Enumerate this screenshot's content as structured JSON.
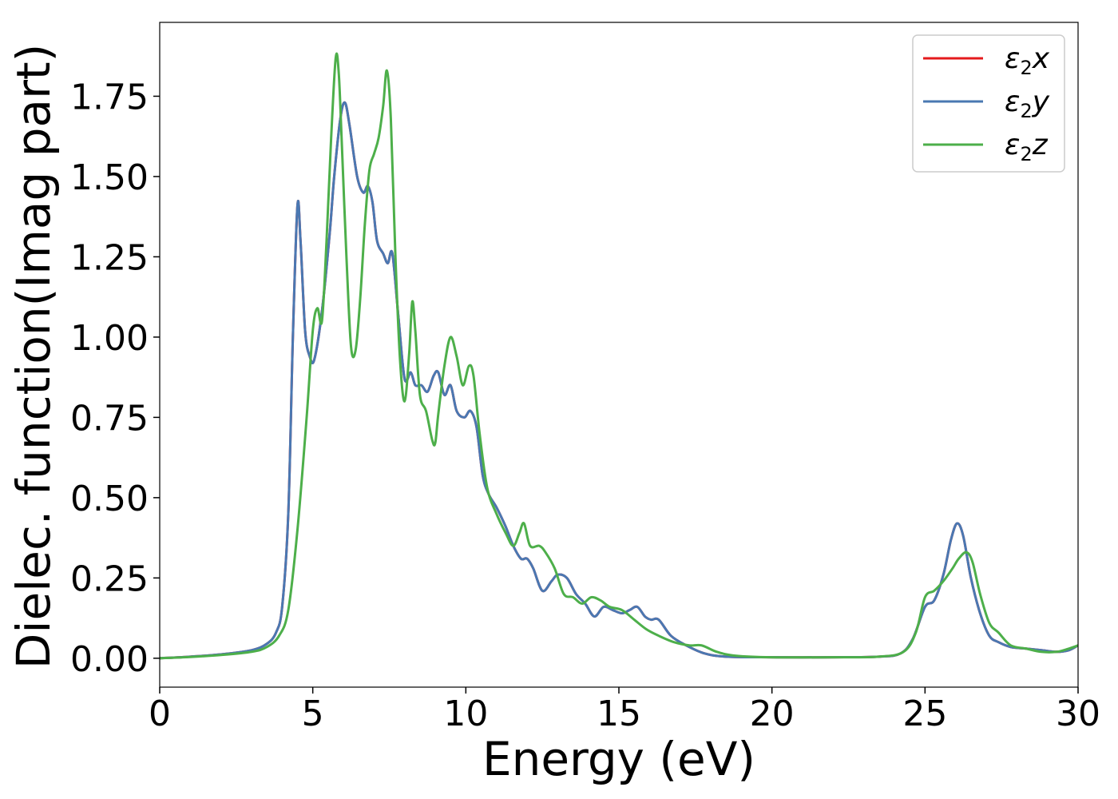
{
  "chart_data": {
    "type": "line",
    "title": "",
    "xlabel": "Energy (eV)",
    "ylabel": "Dielec. function(Imag part)",
    "xlim": [
      0,
      30
    ],
    "ylim": [
      -0.09,
      1.98
    ],
    "xticks": [
      0,
      5,
      10,
      15,
      20,
      25,
      30
    ],
    "xtick_labels": [
      "0",
      "5",
      "10",
      "15",
      "20",
      "25",
      "30"
    ],
    "yticks": [
      0,
      0.25,
      0.5,
      0.75,
      1.0,
      1.25,
      1.5,
      1.75
    ],
    "ytick_labels": [
      "0.00",
      "0.25",
      "0.50",
      "0.75",
      "1.00",
      "1.25",
      "1.50",
      "1.75"
    ],
    "grid": false,
    "legend_position": "top-right",
    "series": [
      {
        "name": "ε2x",
        "legend_base": "ε",
        "legend_sub": "2",
        "legend_suffix": "x",
        "color": "#e41a1c",
        "x": [
          0,
          1,
          2,
          3,
          3.5,
          3.8,
          4.0,
          4.2,
          4.35,
          4.5,
          4.6,
          4.75,
          4.9,
          5.05,
          5.3,
          5.55,
          5.7,
          5.9,
          6.05,
          6.2,
          6.45,
          6.65,
          6.8,
          6.95,
          7.1,
          7.3,
          7.45,
          7.6,
          7.8,
          8.0,
          8.2,
          8.35,
          8.55,
          8.75,
          8.95,
          9.1,
          9.3,
          9.5,
          9.7,
          9.95,
          10.15,
          10.35,
          10.55,
          10.75,
          11.0,
          11.3,
          11.55,
          11.8,
          12.0,
          12.2,
          12.5,
          12.8,
          13.0,
          13.3,
          13.6,
          13.9,
          14.2,
          14.5,
          14.8,
          15.1,
          15.35,
          15.6,
          15.85,
          16.05,
          16.3,
          16.7,
          17.2,
          17.8,
          18.5,
          20,
          22,
          23.5,
          24.2,
          24.6,
          25.0,
          25.3,
          25.6,
          25.85,
          26.05,
          26.25,
          26.5,
          26.8,
          27.1,
          27.4,
          27.8,
          28.3,
          28.8,
          29.3,
          29.7,
          30
        ],
        "y": [
          0.0,
          0.005,
          0.012,
          0.025,
          0.045,
          0.08,
          0.16,
          0.45,
          1.0,
          1.41,
          1.3,
          1.02,
          0.94,
          0.93,
          1.08,
          1.32,
          1.5,
          1.68,
          1.73,
          1.66,
          1.5,
          1.45,
          1.47,
          1.42,
          1.3,
          1.26,
          1.23,
          1.26,
          1.06,
          0.87,
          0.89,
          0.85,
          0.85,
          0.83,
          0.88,
          0.89,
          0.82,
          0.85,
          0.77,
          0.75,
          0.77,
          0.72,
          0.57,
          0.51,
          0.47,
          0.41,
          0.35,
          0.31,
          0.31,
          0.28,
          0.21,
          0.24,
          0.26,
          0.25,
          0.2,
          0.17,
          0.13,
          0.16,
          0.15,
          0.14,
          0.15,
          0.16,
          0.13,
          0.12,
          0.12,
          0.07,
          0.04,
          0.015,
          0.005,
          0.003,
          0.003,
          0.005,
          0.015,
          0.06,
          0.16,
          0.18,
          0.26,
          0.37,
          0.42,
          0.38,
          0.25,
          0.14,
          0.07,
          0.05,
          0.035,
          0.03,
          0.025,
          0.02,
          0.025,
          0.04
        ]
      },
      {
        "name": "ε2y",
        "legend_base": "ε",
        "legend_sub": "2",
        "legend_suffix": "y",
        "color": "#4a78b2",
        "x": [
          0,
          1,
          2,
          3,
          3.5,
          3.8,
          4.0,
          4.2,
          4.35,
          4.5,
          4.6,
          4.75,
          4.9,
          5.05,
          5.3,
          5.55,
          5.7,
          5.9,
          6.05,
          6.2,
          6.45,
          6.65,
          6.8,
          6.95,
          7.1,
          7.3,
          7.45,
          7.6,
          7.8,
          8.0,
          8.2,
          8.35,
          8.55,
          8.75,
          8.95,
          9.1,
          9.3,
          9.5,
          9.7,
          9.95,
          10.15,
          10.35,
          10.55,
          10.75,
          11.0,
          11.3,
          11.55,
          11.8,
          12.0,
          12.2,
          12.5,
          12.8,
          13.0,
          13.3,
          13.6,
          13.9,
          14.2,
          14.5,
          14.8,
          15.1,
          15.35,
          15.6,
          15.85,
          16.05,
          16.3,
          16.7,
          17.2,
          17.8,
          18.5,
          20,
          22,
          23.5,
          24.2,
          24.6,
          25.0,
          25.3,
          25.6,
          25.85,
          26.05,
          26.25,
          26.5,
          26.8,
          27.1,
          27.4,
          27.8,
          28.3,
          28.8,
          29.3,
          29.7,
          30
        ],
        "y": [
          0.0,
          0.005,
          0.012,
          0.025,
          0.045,
          0.08,
          0.16,
          0.45,
          1.0,
          1.41,
          1.3,
          1.02,
          0.94,
          0.93,
          1.08,
          1.32,
          1.5,
          1.68,
          1.73,
          1.66,
          1.5,
          1.45,
          1.47,
          1.42,
          1.3,
          1.26,
          1.23,
          1.26,
          1.06,
          0.87,
          0.89,
          0.85,
          0.85,
          0.83,
          0.88,
          0.89,
          0.82,
          0.85,
          0.77,
          0.75,
          0.77,
          0.72,
          0.57,
          0.51,
          0.47,
          0.41,
          0.35,
          0.31,
          0.31,
          0.28,
          0.21,
          0.24,
          0.26,
          0.25,
          0.2,
          0.17,
          0.13,
          0.16,
          0.15,
          0.14,
          0.15,
          0.16,
          0.13,
          0.12,
          0.12,
          0.07,
          0.04,
          0.015,
          0.005,
          0.003,
          0.003,
          0.005,
          0.015,
          0.06,
          0.16,
          0.18,
          0.26,
          0.37,
          0.42,
          0.38,
          0.25,
          0.14,
          0.07,
          0.05,
          0.035,
          0.03,
          0.025,
          0.02,
          0.025,
          0.04
        ]
      },
      {
        "name": "ε2z",
        "legend_base": "ε",
        "legend_sub": "2",
        "legend_suffix": "z",
        "color": "#4daf4a",
        "x": [
          0,
          1,
          2,
          3,
          3.5,
          3.9,
          4.2,
          4.5,
          4.8,
          5.0,
          5.15,
          5.3,
          5.45,
          5.6,
          5.75,
          5.85,
          5.95,
          6.1,
          6.25,
          6.4,
          6.55,
          6.7,
          6.85,
          7.0,
          7.15,
          7.3,
          7.42,
          7.55,
          7.7,
          7.85,
          8.0,
          8.15,
          8.25,
          8.35,
          8.5,
          8.7,
          8.9,
          9.0,
          9.1,
          9.3,
          9.5,
          9.7,
          9.9,
          10.1,
          10.25,
          10.45,
          10.7,
          11.0,
          11.3,
          11.55,
          11.75,
          11.9,
          12.1,
          12.4,
          12.6,
          12.9,
          13.2,
          13.5,
          13.8,
          14.1,
          14.4,
          14.7,
          15.1,
          15.5,
          15.9,
          16.3,
          16.8,
          17.3,
          17.7,
          18.2,
          18.8,
          20,
          22,
          23.5,
          24.3,
          24.7,
          25.0,
          25.3,
          25.6,
          25.9,
          26.1,
          26.35,
          26.55,
          26.8,
          27.1,
          27.4,
          27.8,
          28.3,
          28.8,
          29.3,
          29.7,
          30
        ],
        "y": [
          0.0,
          0.004,
          0.01,
          0.02,
          0.035,
          0.07,
          0.15,
          0.4,
          0.75,
          1.02,
          1.09,
          1.05,
          1.3,
          1.62,
          1.87,
          1.82,
          1.6,
          1.25,
          0.97,
          0.96,
          1.12,
          1.35,
          1.52,
          1.57,
          1.62,
          1.72,
          1.83,
          1.68,
          1.25,
          0.93,
          0.8,
          0.95,
          1.11,
          1.02,
          0.82,
          0.77,
          0.68,
          0.67,
          0.76,
          0.91,
          1.0,
          0.94,
          0.85,
          0.91,
          0.88,
          0.7,
          0.53,
          0.45,
          0.39,
          0.35,
          0.39,
          0.42,
          0.35,
          0.35,
          0.33,
          0.28,
          0.2,
          0.19,
          0.17,
          0.19,
          0.18,
          0.16,
          0.15,
          0.12,
          0.09,
          0.07,
          0.05,
          0.04,
          0.04,
          0.02,
          0.008,
          0.003,
          0.003,
          0.005,
          0.02,
          0.08,
          0.19,
          0.21,
          0.24,
          0.28,
          0.31,
          0.33,
          0.3,
          0.2,
          0.11,
          0.08,
          0.04,
          0.03,
          0.02,
          0.02,
          0.03,
          0.04
        ]
      }
    ]
  }
}
